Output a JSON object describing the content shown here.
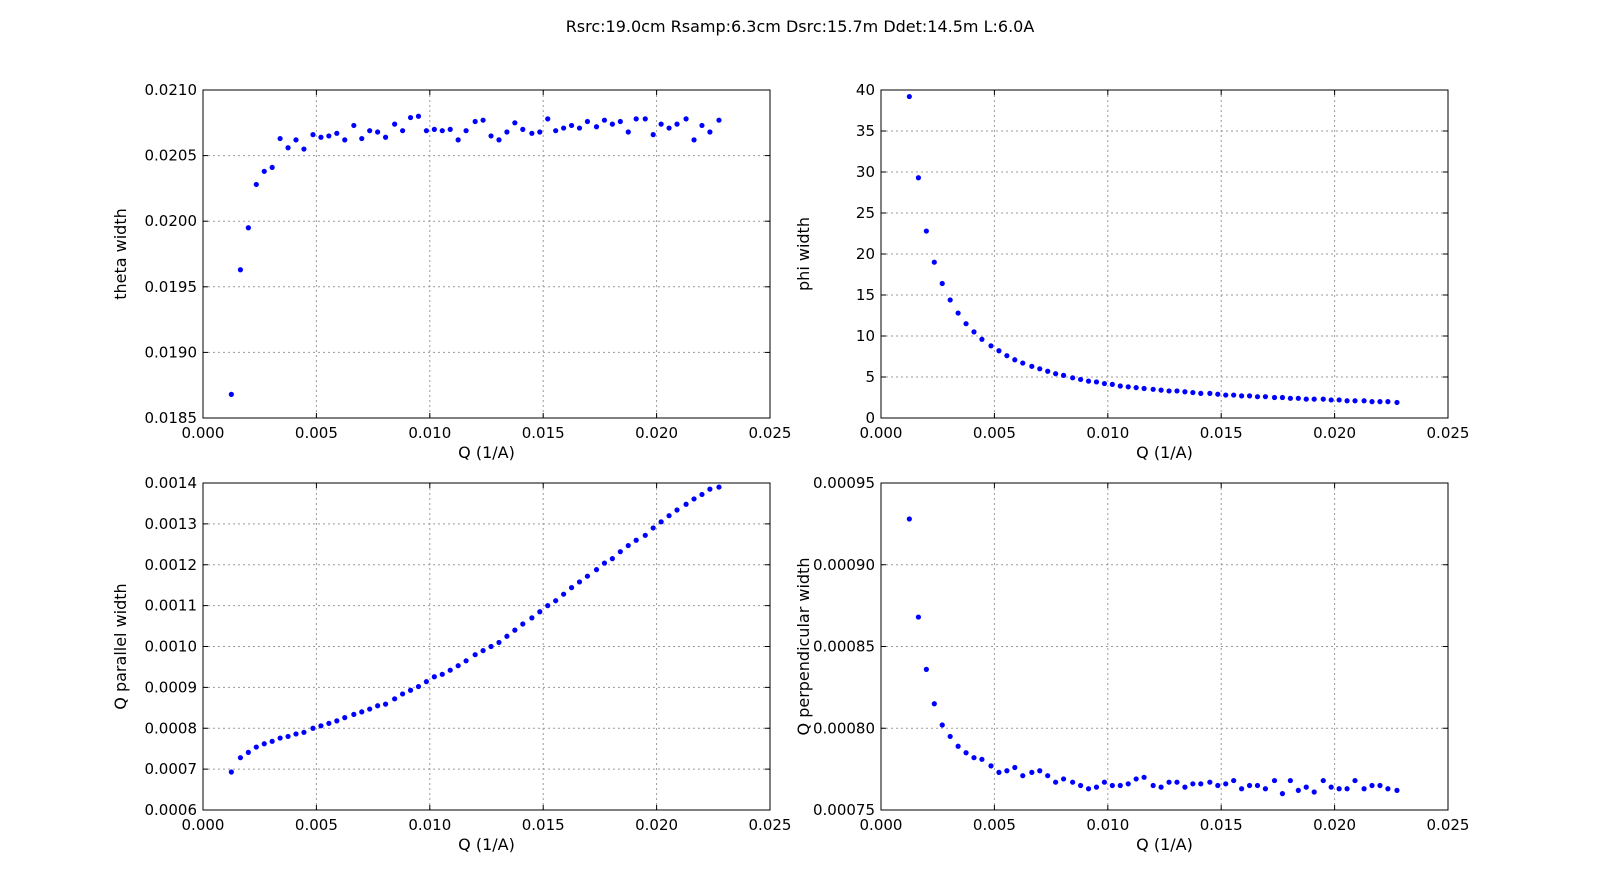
{
  "suptitle": "Rsrc:19.0cm Rsamp:6.3cm Dsrc:15.7m Ddet:14.5m L:6.0A",
  "colors": {
    "points": "#0000ff",
    "grid": "#9a9a9a",
    "frame": "#000000"
  },
  "chart_data": [
    {
      "type": "scatter",
      "xlabel": "Q (1/A)",
      "ylabel": "theta width",
      "xlim": [
        0.0,
        0.025
      ],
      "ylim": [
        0.0185,
        0.021
      ],
      "xticks": [
        0.0,
        0.005,
        0.01,
        0.015,
        0.02,
        0.025
      ],
      "xtick_labels": [
        "0.000",
        "0.005",
        "0.010",
        "0.015",
        "0.020",
        "0.025"
      ],
      "yticks": [
        0.0185,
        0.019,
        0.0195,
        0.02,
        0.0205,
        0.021
      ],
      "ytick_labels": [
        "0.0185",
        "0.0190",
        "0.0195",
        "0.0200",
        "0.0205",
        "0.0210"
      ],
      "grid": true,
      "x": [
        0.00125,
        0.00165,
        0.002,
        0.00235,
        0.0027,
        0.00305,
        0.0034,
        0.00375,
        0.0041,
        0.00445,
        0.00485,
        0.0052,
        0.00555,
        0.0059,
        0.00625,
        0.00665,
        0.007,
        0.00735,
        0.0077,
        0.00805,
        0.00845,
        0.0088,
        0.00915,
        0.0095,
        0.00985,
        0.0102,
        0.01055,
        0.0109,
        0.01125,
        0.0116,
        0.012,
        0.01235,
        0.0127,
        0.01305,
        0.0134,
        0.01375,
        0.0141,
        0.0145,
        0.01485,
        0.0152,
        0.01555,
        0.0159,
        0.01625,
        0.0166,
        0.01695,
        0.01735,
        0.0177,
        0.01805,
        0.0184,
        0.01875,
        0.0191,
        0.0195,
        0.01985,
        0.0202,
        0.02055,
        0.0209,
        0.0213,
        0.02165,
        0.022,
        0.02235,
        0.02275
      ],
      "y": [
        0.01868,
        0.01963,
        0.01995,
        0.02028,
        0.02038,
        0.02041,
        0.02063,
        0.02056,
        0.02062,
        0.02055,
        0.02066,
        0.02064,
        0.02065,
        0.02067,
        0.02062,
        0.02073,
        0.02063,
        0.02069,
        0.02068,
        0.02064,
        0.02074,
        0.02069,
        0.02079,
        0.0208,
        0.02069,
        0.0207,
        0.02069,
        0.0207,
        0.02062,
        0.02069,
        0.02076,
        0.02077,
        0.02065,
        0.02062,
        0.02068,
        0.02075,
        0.0207,
        0.02067,
        0.02068,
        0.02078,
        0.02069,
        0.02071,
        0.02073,
        0.02071,
        0.02076,
        0.02072,
        0.02077,
        0.02074,
        0.02076,
        0.02068,
        0.02078,
        0.02078,
        0.02066,
        0.02074,
        0.02071,
        0.02074,
        0.02078,
        0.02062,
        0.02073,
        0.02068,
        0.02077
      ]
    },
    {
      "type": "scatter",
      "xlabel": "Q (1/A)",
      "ylabel": "phi width",
      "xlim": [
        0.0,
        0.025
      ],
      "ylim": [
        0,
        40
      ],
      "xticks": [
        0.0,
        0.005,
        0.01,
        0.015,
        0.02,
        0.025
      ],
      "xtick_labels": [
        "0.000",
        "0.005",
        "0.010",
        "0.015",
        "0.020",
        "0.025"
      ],
      "yticks": [
        0,
        5,
        10,
        15,
        20,
        25,
        30,
        35,
        40
      ],
      "ytick_labels": [
        "0",
        "5",
        "10",
        "15",
        "20",
        "25",
        "30",
        "35",
        "40"
      ],
      "grid": true,
      "x": [
        0.00125,
        0.00165,
        0.002,
        0.00235,
        0.0027,
        0.00305,
        0.0034,
        0.00375,
        0.0041,
        0.00445,
        0.00485,
        0.0052,
        0.00555,
        0.0059,
        0.00625,
        0.00665,
        0.007,
        0.00735,
        0.0077,
        0.00805,
        0.00845,
        0.0088,
        0.00915,
        0.0095,
        0.00985,
        0.0102,
        0.01055,
        0.0109,
        0.01125,
        0.0116,
        0.012,
        0.01235,
        0.0127,
        0.01305,
        0.0134,
        0.01375,
        0.0141,
        0.0145,
        0.01485,
        0.0152,
        0.01555,
        0.0159,
        0.01625,
        0.0166,
        0.01695,
        0.01735,
        0.0177,
        0.01805,
        0.0184,
        0.01875,
        0.0191,
        0.0195,
        0.01985,
        0.0202,
        0.02055,
        0.0209,
        0.0213,
        0.02165,
        0.022,
        0.02235,
        0.02275
      ],
      "y": [
        39.2,
        29.3,
        22.8,
        19.0,
        16.4,
        14.4,
        12.8,
        11.5,
        10.5,
        9.6,
        8.8,
        8.2,
        7.6,
        7.1,
        6.7,
        6.3,
        6.0,
        5.7,
        5.4,
        5.2,
        4.9,
        4.7,
        4.5,
        4.4,
        4.2,
        4.1,
        3.9,
        3.8,
        3.7,
        3.6,
        3.5,
        3.4,
        3.3,
        3.3,
        3.2,
        3.1,
        3.0,
        3.0,
        2.9,
        2.8,
        2.8,
        2.7,
        2.7,
        2.6,
        2.6,
        2.5,
        2.5,
        2.4,
        2.4,
        2.3,
        2.3,
        2.3,
        2.2,
        2.2,
        2.1,
        2.1,
        2.1,
        2.0,
        2.0,
        2.0,
        1.9
      ]
    },
    {
      "type": "scatter",
      "xlabel": "Q (1/A)",
      "ylabel": "Q parallel width",
      "xlim": [
        0.0,
        0.025
      ],
      "ylim": [
        0.0006,
        0.0014
      ],
      "xticks": [
        0.0,
        0.005,
        0.01,
        0.015,
        0.02,
        0.025
      ],
      "xtick_labels": [
        "0.000",
        "0.005",
        "0.010",
        "0.015",
        "0.020",
        "0.025"
      ],
      "yticks": [
        0.0006,
        0.0007,
        0.0008,
        0.0009,
        0.001,
        0.0011,
        0.0012,
        0.0013,
        0.0014
      ],
      "ytick_labels": [
        "0.0006",
        "0.0007",
        "0.0008",
        "0.0009",
        "0.0010",
        "0.0011",
        "0.0012",
        "0.0013",
        "0.0014"
      ],
      "grid": true,
      "x": [
        0.00125,
        0.00165,
        0.002,
        0.00235,
        0.0027,
        0.00305,
        0.0034,
        0.00375,
        0.0041,
        0.00445,
        0.00485,
        0.0052,
        0.00555,
        0.0059,
        0.00625,
        0.00665,
        0.007,
        0.00735,
        0.0077,
        0.00805,
        0.00845,
        0.0088,
        0.00915,
        0.0095,
        0.00985,
        0.0102,
        0.01055,
        0.0109,
        0.01125,
        0.0116,
        0.012,
        0.01235,
        0.0127,
        0.01305,
        0.0134,
        0.01375,
        0.0141,
        0.0145,
        0.01485,
        0.0152,
        0.01555,
        0.0159,
        0.01625,
        0.0166,
        0.01695,
        0.01735,
        0.0177,
        0.01805,
        0.0184,
        0.01875,
        0.0191,
        0.0195,
        0.01985,
        0.0202,
        0.02055,
        0.0209,
        0.0213,
        0.02165,
        0.022,
        0.02235,
        0.02275
      ],
      "y": [
        0.000693,
        0.000728,
        0.000741,
        0.000754,
        0.000762,
        0.000768,
        0.000776,
        0.00078,
        0.000786,
        0.00079,
        0.0008,
        0.000806,
        0.000812,
        0.000818,
        0.000826,
        0.000834,
        0.00084,
        0.000847,
        0.000855,
        0.000859,
        0.000872,
        0.000884,
        0.000893,
        0.000902,
        0.000914,
        0.000926,
        0.000932,
        0.000942,
        0.000953,
        0.000965,
        0.00098,
        0.00099,
        0.001,
        0.00101,
        0.001025,
        0.00104,
        0.001055,
        0.00107,
        0.001085,
        0.0011,
        0.001112,
        0.001128,
        0.001144,
        0.001158,
        0.001172,
        0.001188,
        0.001204,
        0.001215,
        0.001232,
        0.001247,
        0.00126,
        0.001272,
        0.00129,
        0.001305,
        0.00132,
        0.001334,
        0.001348,
        0.001361,
        0.001372,
        0.001385,
        0.00139
      ]
    },
    {
      "type": "scatter",
      "xlabel": "Q (1/A)",
      "ylabel": "Q perpendicular width",
      "xlim": [
        0.0,
        0.025
      ],
      "ylim": [
        0.00075,
        0.00095
      ],
      "xticks": [
        0.0,
        0.005,
        0.01,
        0.015,
        0.02,
        0.025
      ],
      "xtick_labels": [
        "0.000",
        "0.005",
        "0.010",
        "0.015",
        "0.020",
        "0.025"
      ],
      "yticks": [
        0.00075,
        0.0008,
        0.00085,
        0.0009,
        0.00095
      ],
      "ytick_labels": [
        "0.00075",
        "0.00080",
        "0.00085",
        "0.00090",
        "0.00095"
      ],
      "grid": true,
      "x": [
        0.00125,
        0.00165,
        0.002,
        0.00235,
        0.0027,
        0.00305,
        0.0034,
        0.00375,
        0.0041,
        0.00445,
        0.00485,
        0.0052,
        0.00555,
        0.0059,
        0.00625,
        0.00665,
        0.007,
        0.00735,
        0.0077,
        0.00805,
        0.00845,
        0.0088,
        0.00915,
        0.0095,
        0.00985,
        0.0102,
        0.01055,
        0.0109,
        0.01125,
        0.0116,
        0.012,
        0.01235,
        0.0127,
        0.01305,
        0.0134,
        0.01375,
        0.0141,
        0.0145,
        0.01485,
        0.0152,
        0.01555,
        0.0159,
        0.01625,
        0.0166,
        0.01695,
        0.01735,
        0.0177,
        0.01805,
        0.0184,
        0.01875,
        0.0191,
        0.0195,
        0.01985,
        0.0202,
        0.02055,
        0.0209,
        0.0213,
        0.02165,
        0.022,
        0.02235,
        0.02275
      ],
      "y": [
        0.000928,
        0.000868,
        0.000836,
        0.000815,
        0.000802,
        0.000795,
        0.000789,
        0.000785,
        0.000782,
        0.000781,
        0.000777,
        0.000773,
        0.000774,
        0.000776,
        0.000771,
        0.000773,
        0.000774,
        0.000771,
        0.000767,
        0.000769,
        0.000767,
        0.000765,
        0.000763,
        0.000764,
        0.000767,
        0.000765,
        0.000765,
        0.000766,
        0.000769,
        0.00077,
        0.000765,
        0.000764,
        0.000767,
        0.000767,
        0.000764,
        0.000766,
        0.000766,
        0.000767,
        0.000765,
        0.000766,
        0.000768,
        0.000763,
        0.000765,
        0.000765,
        0.000763,
        0.000768,
        0.00076,
        0.000768,
        0.000762,
        0.000764,
        0.000761,
        0.000768,
        0.000764,
        0.000763,
        0.000763,
        0.000768,
        0.000763,
        0.000765,
        0.000765,
        0.000763,
        0.000762
      ]
    }
  ]
}
